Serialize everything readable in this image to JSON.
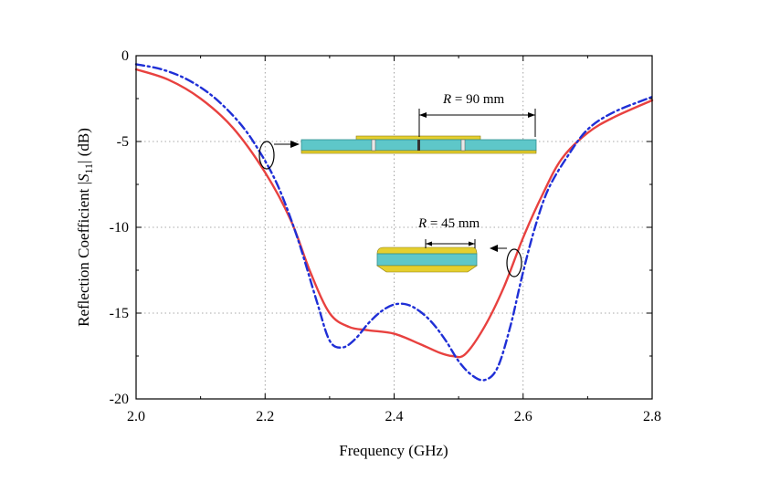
{
  "chart_data": {
    "type": "line",
    "xlabel": "Frequency (GHz)",
    "ylabel": {
      "prefix": "Reflection Coefficient |",
      "symbol": "S",
      "subscript": "11",
      "suffix": "| (dB)"
    },
    "xlim": [
      2.0,
      2.8
    ],
    "ylim": [
      -20,
      0
    ],
    "x_ticks": [
      2.0,
      2.2,
      2.4,
      2.6,
      2.8
    ],
    "y_ticks": [
      0,
      -5,
      -10,
      -15,
      -20
    ],
    "x_tick_labels": [
      "2.0",
      "2.2",
      "2.4",
      "2.6",
      "2.8"
    ],
    "y_tick_labels": [
      "0",
      "-5",
      "-10",
      "-15",
      "-20"
    ],
    "grid": true,
    "series": [
      {
        "color": "#e8413f",
        "style": "solid",
        "x": [
          2.0,
          2.05,
          2.1,
          2.15,
          2.2,
          2.24,
          2.27,
          2.3,
          2.33,
          2.36,
          2.4,
          2.44,
          2.47,
          2.49,
          2.51,
          2.54,
          2.57,
          2.6,
          2.63,
          2.66,
          2.7,
          2.74,
          2.8
        ],
        "y": [
          -0.8,
          -1.4,
          -2.5,
          -4.2,
          -6.8,
          -9.6,
          -12.6,
          -15.0,
          -15.8,
          -16.0,
          -16.2,
          -16.8,
          -17.3,
          -17.5,
          -17.4,
          -15.8,
          -13.5,
          -10.6,
          -8.1,
          -6.0,
          -4.5,
          -3.6,
          -2.6
        ]
      },
      {
        "color": "#1f2fd6",
        "style": "dash-dot",
        "x": [
          2.0,
          2.04,
          2.08,
          2.12,
          2.16,
          2.19,
          2.22,
          2.25,
          2.28,
          2.3,
          2.32,
          2.34,
          2.36,
          2.38,
          2.4,
          2.42,
          2.44,
          2.46,
          2.48,
          2.5,
          2.52,
          2.54,
          2.56,
          2.58,
          2.6,
          2.62,
          2.64,
          2.67,
          2.7,
          2.74,
          2.8
        ],
        "y": [
          -0.5,
          -0.8,
          -1.4,
          -2.4,
          -3.9,
          -5.5,
          -7.6,
          -10.6,
          -14.3,
          -16.6,
          -17.0,
          -16.5,
          -15.6,
          -14.9,
          -14.5,
          -14.5,
          -14.9,
          -15.6,
          -16.6,
          -17.8,
          -18.6,
          -18.9,
          -18.2,
          -15.8,
          -12.6,
          -9.8,
          -7.7,
          -5.8,
          -4.3,
          -3.3,
          -2.4
        ]
      }
    ],
    "annotations": [
      {
        "label_var": "R",
        "label_value": " = 90 mm"
      },
      {
        "label_var": "R",
        "label_value": " = 45 mm"
      }
    ]
  }
}
